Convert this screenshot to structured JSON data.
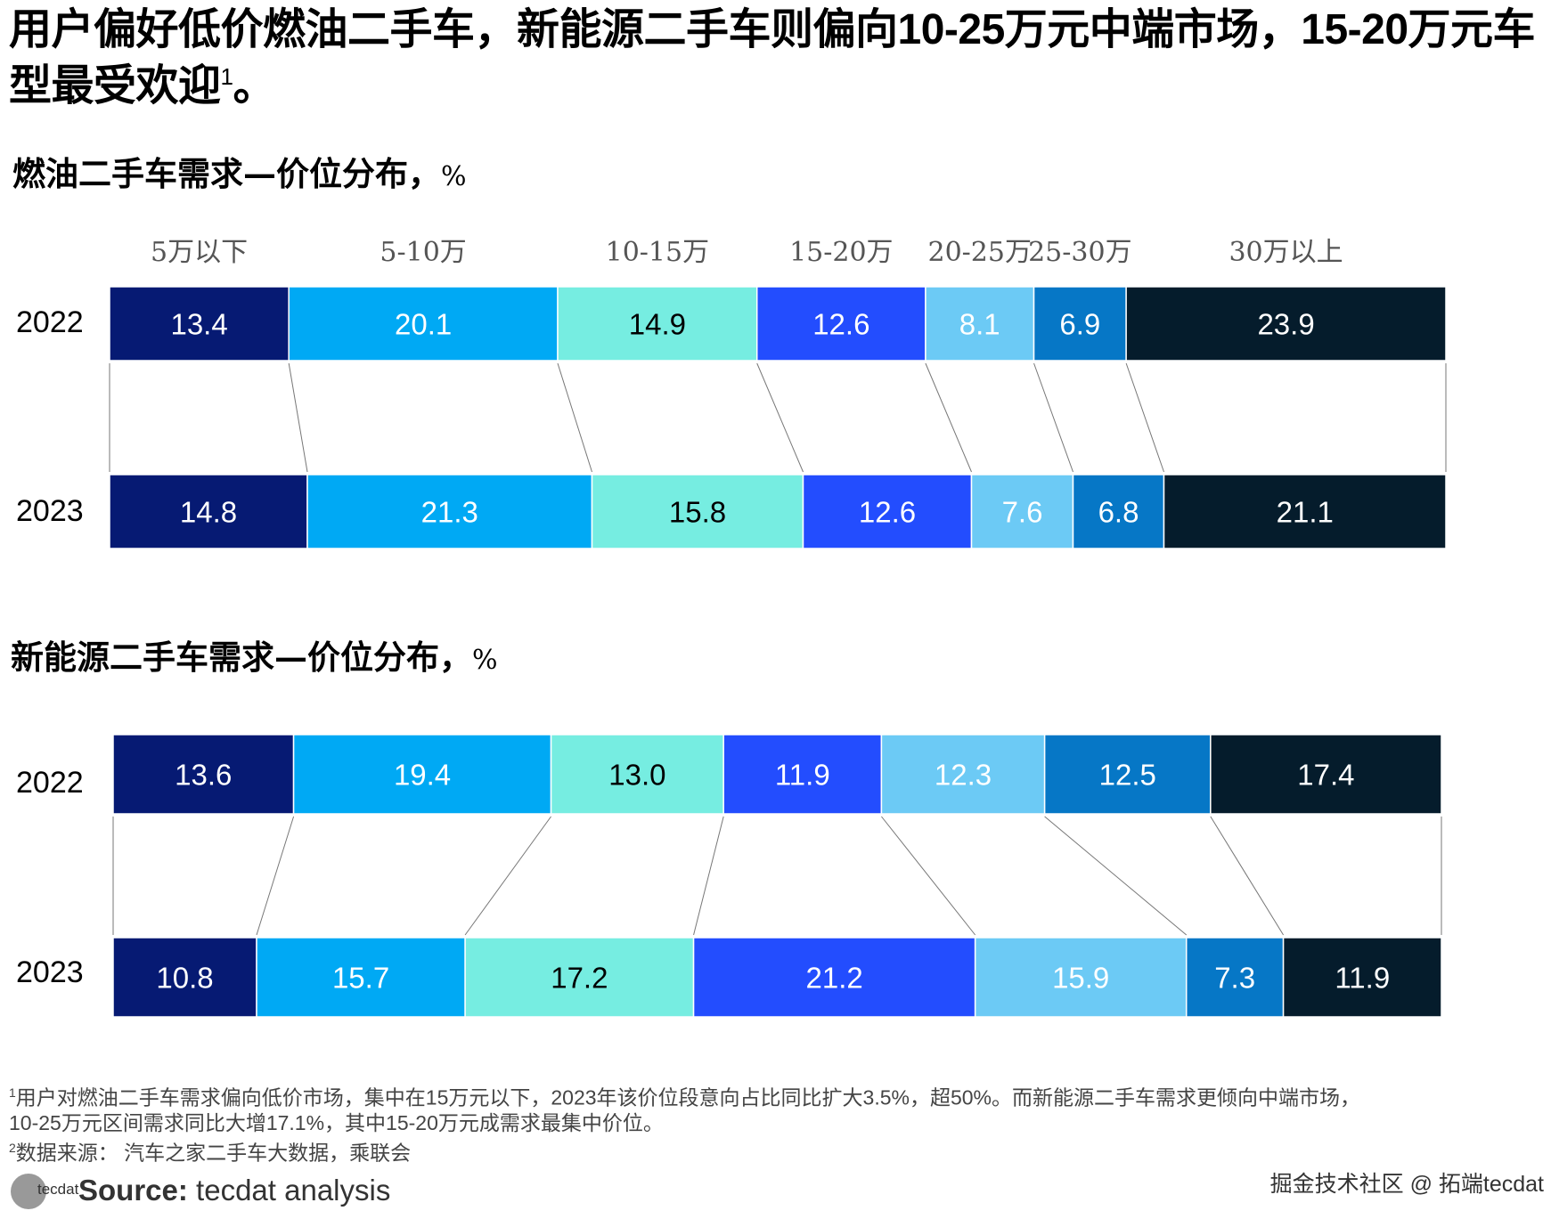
{
  "title": "用户偏好低价燃油二手车，新能源二手车则偏向10-25万元中端市场，15-20万元车型最受欢迎",
  "title_sup": "1",
  "title_end": "。",
  "colors": [
    "#061a73",
    "#00a9f4",
    "#76ede1",
    "#234dfe",
    "#6ccaf5",
    "#0677c6",
    "#051c2c"
  ],
  "label_colors": [
    "#ffffff",
    "#ffffff",
    "#000000",
    "#ffffff",
    "#ffffff",
    "#ffffff",
    "#ffffff"
  ],
  "chart_data": [
    {
      "type": "bar",
      "stacked": "100%",
      "orientation": "horizontal",
      "title": "燃油二手车需求—价位分布",
      "unit": "%",
      "categories": [
        "5万以下",
        "5-10万",
        "10-15万",
        "15-20万",
        "20-25万",
        "25-30万",
        "30万以上"
      ],
      "years": [
        "2022",
        "2023"
      ],
      "series": [
        {
          "name": "2022",
          "values": [
            13.4,
            20.1,
            14.9,
            12.6,
            8.1,
            6.9,
            23.9
          ]
        },
        {
          "name": "2023",
          "values": [
            14.8,
            21.3,
            15.8,
            12.6,
            7.6,
            6.8,
            21.1
          ]
        }
      ]
    },
    {
      "type": "bar",
      "stacked": "100%",
      "orientation": "horizontal",
      "title": "新能源二手车需求—价位分布",
      "unit": "%",
      "years": [
        "2022",
        "2023"
      ],
      "series": [
        {
          "name": "2022",
          "values": [
            13.6,
            19.4,
            13.0,
            11.9,
            12.3,
            12.5,
            17.4
          ]
        },
        {
          "name": "2023",
          "values": [
            10.8,
            15.7,
            17.2,
            21.2,
            15.9,
            7.3,
            11.9
          ]
        }
      ]
    }
  ],
  "footnotes": {
    "n1_sup": "1",
    "n1": "用户对燃油二手车需求偏向低价市场，集中在15万元以下，2023年该价位段意向占比同比扩大3.5%，超50%。而新能源二手车需求更倾向中端市场，",
    "n1b": "10-25万元区间需求同比大增17.1%，其中15-20万元成需求最集中价位。",
    "n2_sup": "2",
    "n2": "数据来源： 汽车之家二手车大数据，乘联会"
  },
  "source": {
    "label": "Source:",
    "text": " tecdat analysis",
    "logo": "tecdat"
  },
  "watermark": "掘金技术社区 @ 拓端tecdat"
}
